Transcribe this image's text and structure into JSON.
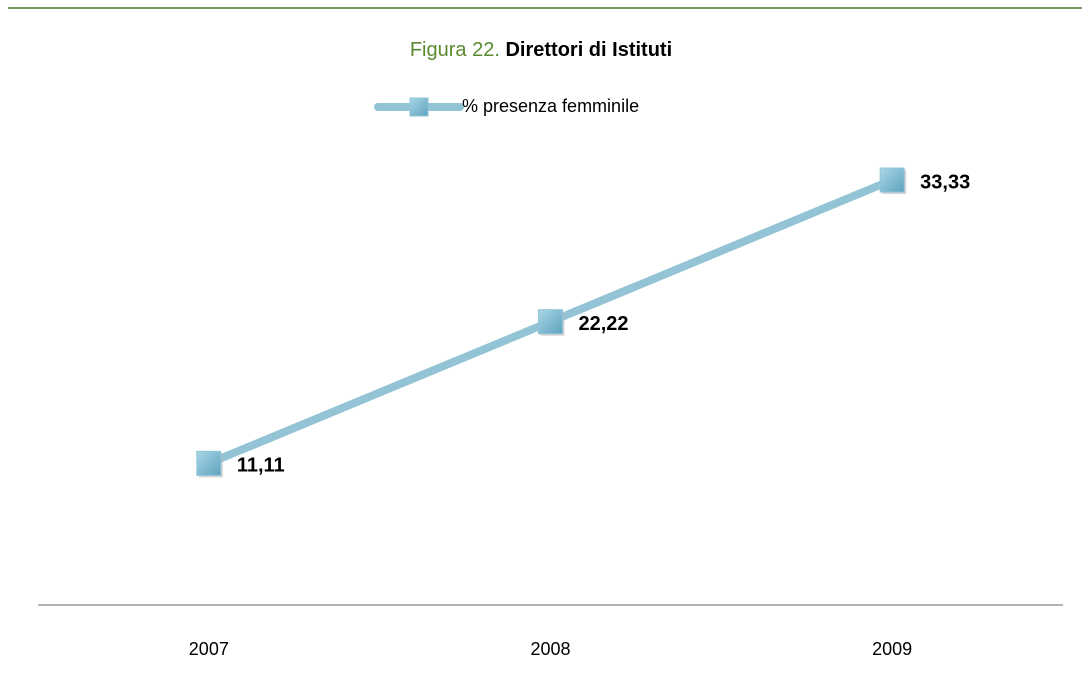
{
  "chart_data": {
    "type": "line",
    "title_label": "Figura 22.",
    "title": "Direttori di Istituti",
    "categories": [
      "2007",
      "2008",
      "2009"
    ],
    "series": [
      {
        "name": "% presenza femminile",
        "color": "#93c4d6",
        "values": [
          11.11,
          22.22,
          33.33
        ],
        "value_labels": [
          "11,11",
          "22,22",
          "33,33"
        ]
      }
    ],
    "ylim": [
      0,
      40
    ],
    "legend": "top"
  }
}
